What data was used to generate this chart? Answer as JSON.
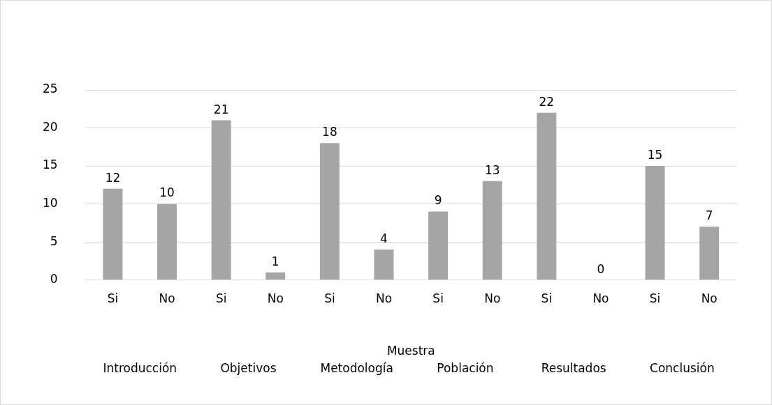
{
  "chart_data": {
    "type": "bar",
    "categories": [
      "Si",
      "No",
      "Si",
      "No",
      "Si",
      "No",
      "Si",
      "No",
      "Si",
      "No",
      "Si",
      "No"
    ],
    "values": [
      12,
      10,
      21,
      1,
      18,
      4,
      9,
      13,
      22,
      0,
      15,
      7
    ],
    "color": "#a5a5a5",
    "xlabel": "Muestra",
    "annotations": [
      "Introducción",
      "Objetivos",
      "Metodología",
      "Población",
      "Resultados",
      "Conclusión"
    ],
    "ylim": [
      0,
      25
    ],
    "yticks": [
      0,
      5,
      10,
      15,
      20,
      25
    ],
    "grid": "y",
    "data_labels": true,
    "legend": false
  }
}
